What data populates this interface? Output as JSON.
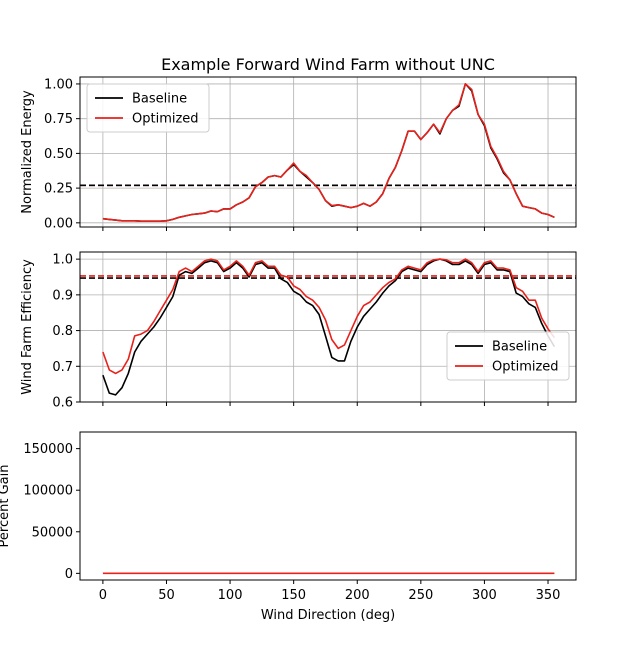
{
  "figure": {
    "title": "Example Forward Wind Farm without UNC",
    "xlabel": "Wind Direction (deg)"
  },
  "colors": {
    "baseline": "#000000",
    "optimized": "#e8211b"
  },
  "chart_data": [
    {
      "type": "line",
      "ylabel": "Normalized Energy",
      "xlim": [
        -18,
        372
      ],
      "ylim": [
        -0.03,
        1.05
      ],
      "xticks": [
        0,
        50,
        100,
        150,
        200,
        250,
        300,
        350
      ],
      "yticks": [
        0.0,
        0.25,
        0.5,
        0.75,
        1.0
      ],
      "ytick_labels": [
        "0.00",
        "0.25",
        "0.50",
        "0.75",
        "1.00"
      ],
      "show_xtick_labels": false,
      "grid": true,
      "legend": "top-left",
      "x": [
        0,
        5,
        10,
        15,
        20,
        25,
        30,
        35,
        40,
        45,
        50,
        55,
        60,
        65,
        70,
        75,
        80,
        85,
        90,
        95,
        100,
        105,
        110,
        115,
        120,
        125,
        130,
        135,
        140,
        145,
        150,
        155,
        160,
        165,
        170,
        175,
        180,
        185,
        190,
        195,
        200,
        205,
        210,
        215,
        220,
        225,
        230,
        235,
        240,
        245,
        250,
        255,
        260,
        265,
        270,
        275,
        280,
        285,
        290,
        295,
        300,
        305,
        310,
        315,
        320,
        325,
        330,
        335,
        340,
        345,
        350,
        355
      ],
      "series": [
        {
          "name": "Baseline",
          "color_key": "baseline",
          "style": "solid",
          "values": [
            0.03,
            0.025,
            0.02,
            0.015,
            0.015,
            0.015,
            0.012,
            0.012,
            0.012,
            0.012,
            0.015,
            0.025,
            0.04,
            0.05,
            0.06,
            0.065,
            0.07,
            0.085,
            0.08,
            0.1,
            0.1,
            0.13,
            0.15,
            0.18,
            0.26,
            0.29,
            0.33,
            0.34,
            0.33,
            0.38,
            0.42,
            0.37,
            0.33,
            0.29,
            0.24,
            0.16,
            0.12,
            0.13,
            0.12,
            0.11,
            0.12,
            0.14,
            0.12,
            0.15,
            0.21,
            0.32,
            0.4,
            0.52,
            0.66,
            0.66,
            0.6,
            0.65,
            0.71,
            0.64,
            0.75,
            0.81,
            0.84,
            1.0,
            0.95,
            0.78,
            0.7,
            0.54,
            0.46,
            0.36,
            0.31,
            0.21,
            0.12,
            0.11,
            0.1,
            0.07,
            0.06,
            0.04
          ]
        },
        {
          "name": "Optimized",
          "color_key": "optimized",
          "style": "solid",
          "values": [
            0.03,
            0.025,
            0.02,
            0.015,
            0.015,
            0.015,
            0.012,
            0.012,
            0.012,
            0.012,
            0.015,
            0.025,
            0.04,
            0.05,
            0.06,
            0.065,
            0.07,
            0.085,
            0.08,
            0.1,
            0.1,
            0.13,
            0.15,
            0.18,
            0.26,
            0.29,
            0.33,
            0.34,
            0.33,
            0.38,
            0.43,
            0.37,
            0.34,
            0.29,
            0.24,
            0.16,
            0.125,
            0.13,
            0.12,
            0.11,
            0.12,
            0.14,
            0.12,
            0.15,
            0.21,
            0.32,
            0.4,
            0.52,
            0.66,
            0.66,
            0.6,
            0.65,
            0.71,
            0.65,
            0.75,
            0.81,
            0.85,
            1.0,
            0.96,
            0.78,
            0.71,
            0.55,
            0.47,
            0.37,
            0.31,
            0.21,
            0.12,
            0.11,
            0.1,
            0.07,
            0.06,
            0.04
          ]
        }
      ],
      "hlines": [
        {
          "value": 0.27,
          "color_key": "optimized",
          "style": "dashed"
        },
        {
          "value": 0.27,
          "color_key": "baseline",
          "style": "dashed"
        }
      ]
    },
    {
      "type": "line",
      "ylabel": "Wind Farm Efficiency",
      "xlim": [
        -18,
        372
      ],
      "ylim": [
        0.6,
        1.02
      ],
      "xticks": [
        0,
        50,
        100,
        150,
        200,
        250,
        300,
        350
      ],
      "yticks": [
        0.6,
        0.7,
        0.8,
        0.9,
        1.0
      ],
      "ytick_labels": [
        "0.6",
        "0.7",
        "0.8",
        "0.9",
        "1.0"
      ],
      "show_xtick_labels": false,
      "grid": true,
      "legend": "lower-right",
      "x": [
        0,
        5,
        10,
        15,
        20,
        25,
        30,
        35,
        40,
        45,
        50,
        55,
        60,
        65,
        70,
        75,
        80,
        85,
        90,
        95,
        100,
        105,
        110,
        115,
        120,
        125,
        130,
        135,
        140,
        145,
        150,
        155,
        160,
        165,
        170,
        175,
        180,
        185,
        190,
        195,
        200,
        205,
        210,
        215,
        220,
        225,
        230,
        235,
        240,
        245,
        250,
        255,
        260,
        265,
        270,
        275,
        280,
        285,
        290,
        295,
        300,
        305,
        310,
        315,
        320,
        325,
        330,
        335,
        340,
        345,
        350,
        355
      ],
      "series": [
        {
          "name": "Baseline",
          "color_key": "baseline",
          "style": "solid",
          "values": [
            0.675,
            0.625,
            0.62,
            0.64,
            0.68,
            0.74,
            0.77,
            0.79,
            0.81,
            0.835,
            0.865,
            0.895,
            0.955,
            0.965,
            0.96,
            0.975,
            0.99,
            0.995,
            0.99,
            0.965,
            0.975,
            0.99,
            0.975,
            0.95,
            0.985,
            0.99,
            0.975,
            0.975,
            0.945,
            0.935,
            0.91,
            0.9,
            0.88,
            0.87,
            0.845,
            0.785,
            0.725,
            0.715,
            0.715,
            0.77,
            0.81,
            0.84,
            0.86,
            0.88,
            0.905,
            0.925,
            0.94,
            0.965,
            0.975,
            0.97,
            0.965,
            0.985,
            0.995,
            1.0,
            0.995,
            0.985,
            0.985,
            0.995,
            0.985,
            0.96,
            0.985,
            0.99,
            0.97,
            0.97,
            0.965,
            0.905,
            0.895,
            0.875,
            0.865,
            0.82,
            0.785,
            0.755
          ]
        },
        {
          "name": "Optimized",
          "color_key": "optimized",
          "style": "solid",
          "values": [
            0.74,
            0.69,
            0.68,
            0.69,
            0.72,
            0.785,
            0.79,
            0.8,
            0.825,
            0.855,
            0.885,
            0.915,
            0.965,
            0.975,
            0.965,
            0.98,
            0.995,
            1.0,
            0.995,
            0.97,
            0.98,
            0.995,
            0.98,
            0.955,
            0.99,
            0.995,
            0.98,
            0.98,
            0.955,
            0.95,
            0.925,
            0.915,
            0.895,
            0.885,
            0.865,
            0.83,
            0.775,
            0.75,
            0.76,
            0.8,
            0.84,
            0.87,
            0.88,
            0.9,
            0.92,
            0.935,
            0.945,
            0.97,
            0.98,
            0.975,
            0.97,
            0.99,
            0.998,
            1.0,
            0.998,
            0.99,
            0.99,
            1.0,
            0.99,
            0.965,
            0.99,
            0.995,
            0.975,
            0.975,
            0.97,
            0.92,
            0.91,
            0.885,
            0.885,
            0.835,
            0.805,
            0.78
          ]
        }
      ],
      "hlines": [
        {
          "value": 0.953,
          "color_key": "optimized",
          "style": "dashed"
        },
        {
          "value": 0.947,
          "color_key": "baseline",
          "style": "dashed"
        }
      ]
    },
    {
      "type": "line",
      "ylabel": "Percent Gain",
      "xlim": [
        -18,
        372
      ],
      "ylim": [
        -8000,
        170000
      ],
      "xticks": [
        0,
        50,
        100,
        150,
        200,
        250,
        300,
        350
      ],
      "xtick_labels": [
        "0",
        "50",
        "100",
        "150",
        "200",
        "250",
        "300",
        "350"
      ],
      "yticks": [
        0,
        50000,
        100000,
        150000
      ],
      "ytick_labels": [
        "0",
        "50000",
        "100000",
        "150000"
      ],
      "show_xtick_labels": true,
      "grid": false,
      "x": [
        0,
        355
      ],
      "series": [
        {
          "color_key": "optimized",
          "style": "solid",
          "values": [
            0,
            0
          ]
        }
      ],
      "hlines": []
    }
  ]
}
